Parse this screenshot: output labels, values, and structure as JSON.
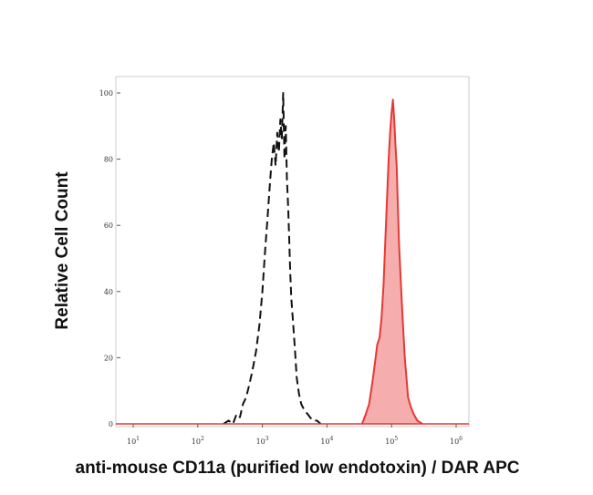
{
  "chart_data": {
    "type": "area",
    "title": "",
    "xlabel": "anti-mouse CD11a (purified low endotoxin) / DAR APC",
    "ylabel": "Relative Cell Count",
    "x_scale": "log",
    "xlim": [
      10,
      1000000
    ],
    "ylim": [
      0,
      100
    ],
    "x_tick_labels": [
      {
        "value": 10,
        "base": "10",
        "exp": "1"
      },
      {
        "value": 100,
        "base": "10",
        "exp": "2"
      },
      {
        "value": 1000,
        "base": "10",
        "exp": "3"
      },
      {
        "value": 10000,
        "base": "10",
        "exp": "4"
      },
      {
        "value": 100000,
        "base": "10",
        "exp": "5"
      },
      {
        "value": 1000000,
        "base": "10",
        "exp": "6"
      }
    ],
    "y_ticks": [
      0,
      20,
      40,
      60,
      80,
      100
    ],
    "y_tick_labels": [
      "0",
      "20",
      "40",
      "60",
      "80",
      "100"
    ],
    "grid": false,
    "legend": "none",
    "series": [
      {
        "style": "dashed-outline",
        "color": "#111111",
        "x": [
          250,
          300,
          350,
          400,
          450,
          500,
          560,
          630,
          700,
          800,
          900,
          1000,
          1100,
          1200,
          1300,
          1400,
          1500,
          1600,
          1700,
          1800,
          1900,
          2000,
          2100,
          2200,
          2300,
          2400,
          2500,
          2600,
          2700,
          2800,
          3000,
          3200,
          3400,
          3700,
          4000,
          4500,
          5000,
          6000,
          7000,
          8000
        ],
        "y": [
          0,
          1,
          0,
          3,
          2,
          6,
          8,
          12,
          16,
          22,
          30,
          40,
          52,
          62,
          72,
          80,
          85,
          78,
          88,
          82,
          92,
          86,
          100,
          80,
          90,
          74,
          66,
          56,
          46,
          38,
          30,
          22,
          14,
          9,
          6,
          4,
          3,
          1,
          1,
          0
        ]
      },
      {
        "style": "filled",
        "color": "#e53935",
        "fill": "#f4a4a4",
        "x": [
          35000,
          40000,
          45000,
          50000,
          55000,
          60000,
          65000,
          70000,
          75000,
          80000,
          85000,
          90000,
          95000,
          100000,
          105000,
          110000,
          115000,
          120000,
          125000,
          130000,
          140000,
          150000,
          160000,
          170000,
          180000,
          200000,
          220000,
          250000,
          300000
        ],
        "y": [
          0,
          3,
          6,
          12,
          18,
          24,
          26,
          32,
          42,
          55,
          68,
          80,
          88,
          94,
          98,
          92,
          84,
          78,
          66,
          55,
          42,
          30,
          20,
          14,
          8,
          5,
          3,
          1,
          0
        ]
      }
    ]
  }
}
